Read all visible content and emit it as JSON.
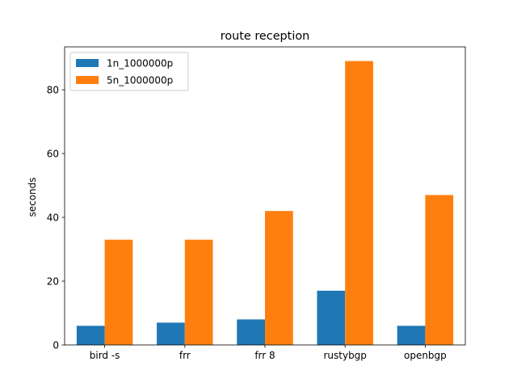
{
  "chart_data": {
    "type": "bar",
    "title": "route reception",
    "xlabel": "",
    "ylabel": "seconds",
    "categories": [
      "bird -s",
      "frr",
      "frr 8",
      "rustybgp",
      "openbgp"
    ],
    "series": [
      {
        "name": "1n_1000000p",
        "values": [
          6,
          7,
          8,
          17,
          6
        ],
        "color": "#1f77b4"
      },
      {
        "name": "5n_1000000p",
        "values": [
          33,
          33,
          42,
          89,
          47
        ],
        "color": "#ff7f0e"
      }
    ],
    "ylim": [
      0,
      93.45
    ],
    "yticks": [
      0,
      20,
      40,
      60,
      80
    ],
    "grid": false,
    "legend": "top-left"
  }
}
